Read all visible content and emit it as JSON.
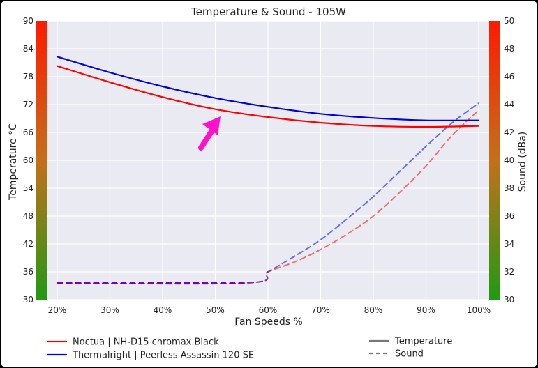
{
  "chart_data": {
    "type": "line",
    "title": "Temperature & Sound - 105W",
    "xlabel": "Fan Speeds %",
    "ylabel_left": "Temperature °C",
    "ylabel_right": "Sound (dBa)",
    "x_ticks": [
      "20%",
      "30%",
      "40%",
      "50%",
      "60%",
      "70%",
      "80%",
      "90%",
      "100%"
    ],
    "xlim": [
      20,
      100
    ],
    "y_left_ticks": [
      30,
      36,
      42,
      48,
      54,
      60,
      66,
      72,
      78,
      84,
      90
    ],
    "y_left_lim": [
      30,
      90
    ],
    "y_right_ticks": [
      30,
      32,
      34,
      36,
      38,
      40,
      42,
      44,
      46,
      48,
      50
    ],
    "y_right_lim": [
      30,
      50
    ],
    "grid": true,
    "annotation": "magenta arrow pointing at the temperature curves near 50%",
    "series": [
      {
        "name": "Noctua | NH-D15 chromax.Black",
        "color": "#ff0000",
        "metric": "temperature",
        "style": "solid",
        "x": [
          20,
          30,
          40,
          50,
          60,
          70,
          80,
          90,
          100
        ],
        "y": [
          80.3,
          76.8,
          73.6,
          71.0,
          69.3,
          68.1,
          67.4,
          67.2,
          67.4
        ]
      },
      {
        "name": "Thermalright | Peerless Assassin 120 SE",
        "color": "#0000dd",
        "metric": "temperature",
        "style": "solid",
        "x": [
          20,
          30,
          40,
          50,
          60,
          70,
          80,
          90,
          100
        ],
        "y": [
          82.3,
          78.9,
          75.9,
          73.4,
          71.5,
          70.0,
          69.1,
          68.6,
          68.6
        ]
      },
      {
        "name": "Noctua | NH-D15 chromax.Black",
        "color": "#ff0000",
        "metric": "sound",
        "style": "dashed",
        "x": [
          20,
          56,
          60,
          65,
          70,
          75,
          80,
          85,
          90,
          95,
          100
        ],
        "y": [
          31.2,
          31.2,
          32.0,
          32.7,
          33.6,
          34.7,
          36.0,
          37.7,
          39.6,
          41.8,
          43.6
        ]
      },
      {
        "name": "Thermalright | Peerless Assassin 120 SE",
        "color": "#0000dd",
        "metric": "sound",
        "style": "dashed",
        "x": [
          20,
          56,
          60,
          65,
          70,
          75,
          80,
          85,
          90,
          95,
          100
        ],
        "y": [
          31.2,
          31.2,
          32.0,
          33.1,
          34.3,
          35.8,
          37.4,
          39.2,
          41.0,
          42.7,
          44.1
        ]
      }
    ],
    "legend": {
      "placement": "bottom",
      "entries": [
        {
          "label": "Noctua | NH-D15 chromax.Black",
          "color": "#ff0000",
          "style": "solid"
        },
        {
          "label": "Thermalright | Peerless Assassin 120 SE",
          "color": "#0000dd",
          "style": "solid"
        },
        {
          "label": "Temperature",
          "color": "#777777",
          "style": "solid"
        },
        {
          "label": "Sound",
          "color": "#777777",
          "style": "dashed"
        }
      ]
    },
    "colors": {
      "plot_background": "#eaeaf2",
      "grid": "#ffffff",
      "gradient_bar_top": "#ff1a00",
      "gradient_bar_middle": "#c4701a",
      "gradient_bar_bottom": "#1f9a14",
      "annotation_arrow": "#ff11cc"
    }
  }
}
